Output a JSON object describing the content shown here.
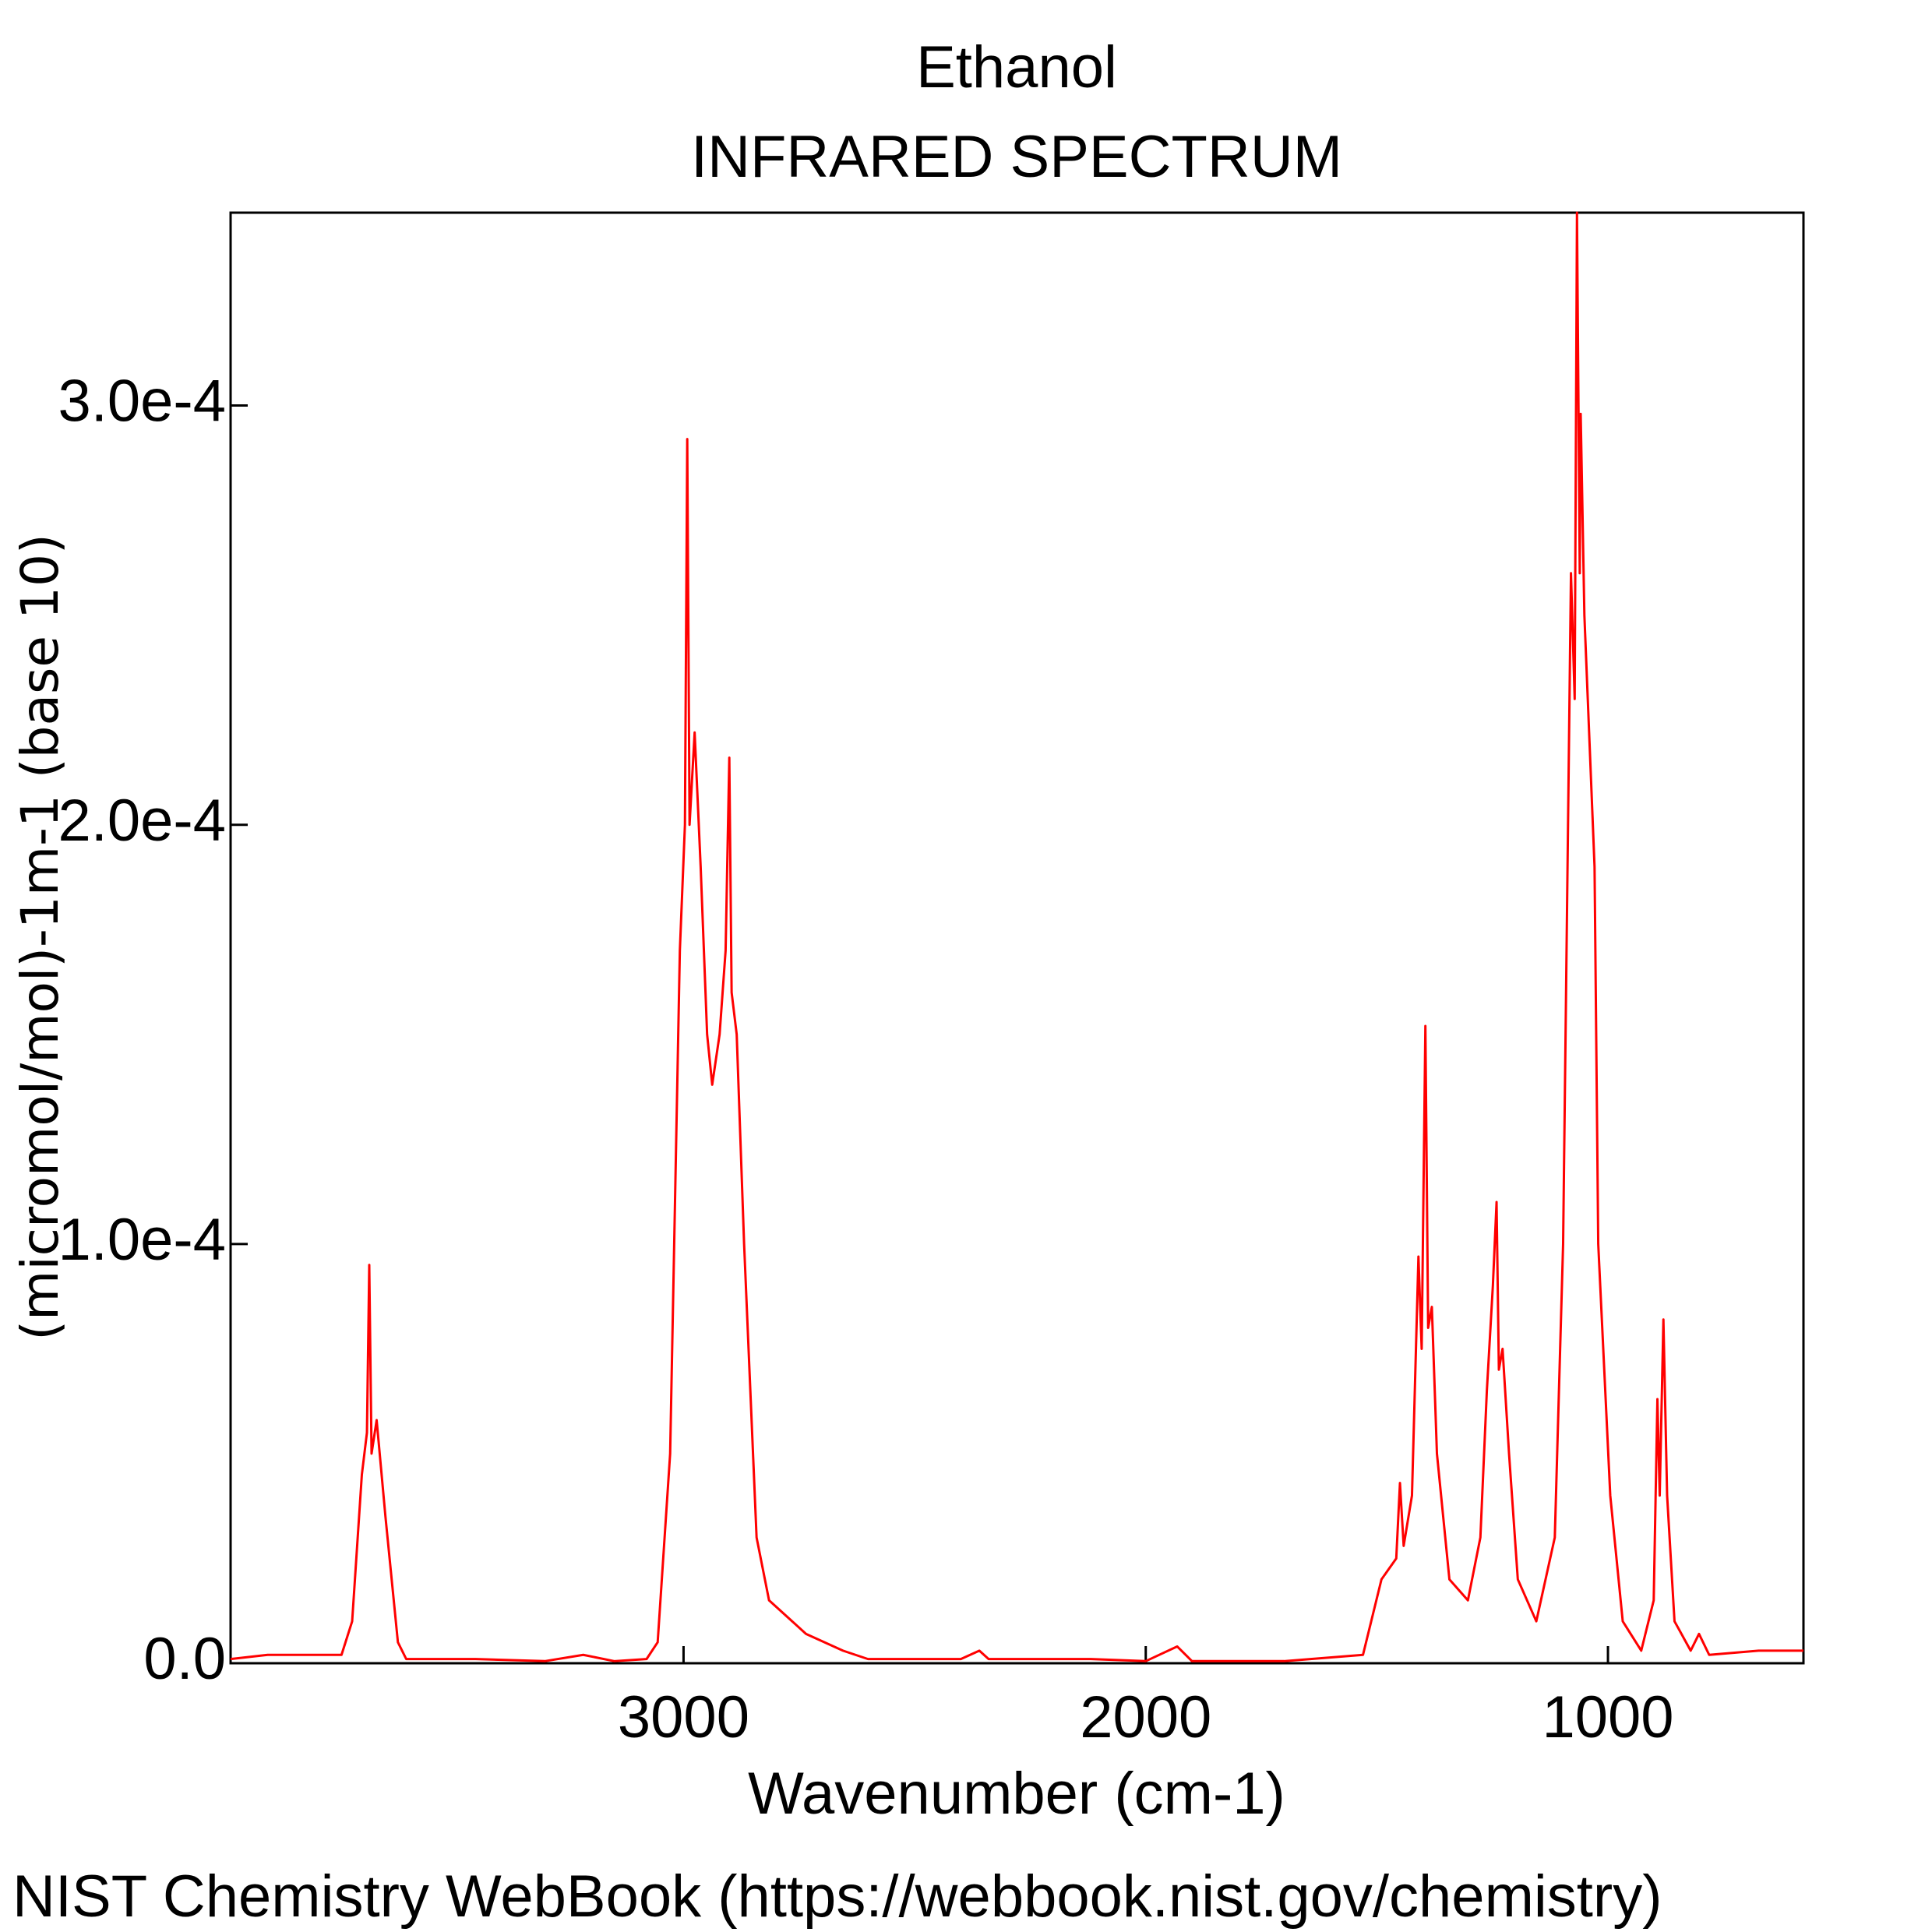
{
  "chart_data": {
    "type": "line",
    "title": "Ethanol",
    "subtitle": "INFRARED SPECTRUM",
    "x_label": "Wavenumber (cm-1)",
    "y_label": "(micromol/mol)-1m-1 (base 10)",
    "source": "NIST Chemistry WebBook (https://webbook.nist.gov/chemistry)",
    "color": "#ff0000",
    "x": [
      3980,
      3900,
      3800,
      3740,
      3717,
      3696,
      3685,
      3680,
      3675,
      3664,
      3645,
      3618,
      3600,
      3450,
      3300,
      3217,
      3150,
      3080,
      3056,
      3029,
      3008,
      2997,
      2992,
      2987,
      2976,
      2963,
      2949,
      2938,
      2922,
      2909,
      2901,
      2896,
      2885,
      2869,
      2842,
      2815,
      2735,
      2655,
      2601,
      2400,
      2360,
      2340,
      2119,
      2000,
      1932,
      1900,
      1700,
      1530,
      1490,
      1458,
      1450,
      1442,
      1424,
      1410,
      1403,
      1395,
      1389,
      1381,
      1370,
      1343,
      1303,
      1276,
      1262,
      1249,
      1241,
      1236,
      1228,
      1214,
      1195,
      1155,
      1115,
      1097,
      1080,
      1072,
      1067,
      1061,
      1059,
      1051,
      1040,
      1029,
      1021,
      995,
      968,
      928,
      901,
      893,
      888,
      880,
      872,
      856,
      821,
      803,
      781,
      674,
      577
    ],
    "values": [
      1e-06,
      2e-06,
      2e-06,
      2e-06,
      1e-05,
      4.5e-05,
      5.5e-05,
      9.5e-05,
      5e-05,
      5.8e-05,
      3.5e-05,
      5e-06,
      1e-06,
      1e-06,
      5e-07,
      2e-06,
      5e-07,
      1e-06,
      5e-06,
      5e-05,
      0.00017,
      0.0002,
      0.000292,
      0.0002,
      0.000222,
      0.00019,
      0.00015,
      0.000138,
      0.00015,
      0.00017,
      0.000216,
      0.00016,
      0.00015,
      0.0001,
      3e-05,
      1.5e-05,
      7e-06,
      3e-06,
      1e-06,
      1e-06,
      3e-06,
      1e-06,
      1e-06,
      5e-07,
      4e-06,
      5e-07,
      5e-07,
      2e-06,
      2e-05,
      2.5e-05,
      4.3e-05,
      2.8e-05,
      4e-05,
      9.7e-05,
      7.5e-05,
      0.000152,
      8e-05,
      8.5e-05,
      5e-05,
      2e-05,
      1.5e-05,
      3e-05,
      6.5e-05,
      9e-05,
      0.00011,
      7e-05,
      7.5e-05,
      5e-05,
      2e-05,
      1e-05,
      3e-05,
      0.0001,
      0.00026,
      0.00023,
      0.000346,
      0.00026,
      0.000298,
      0.00025,
      0.00022,
      0.00019,
      0.0001,
      4e-05,
      1e-05,
      3e-06,
      1.5e-05,
      6.3e-05,
      4e-05,
      8.2e-05,
      4e-05,
      1e-05,
      3e-06,
      7e-06,
      2e-06,
      3e-06,
      3e-06
    ],
    "xlim": [
      3980,
      577
    ],
    "xticks": [
      3000,
      2000,
      1000
    ],
    "ylim": [
      0,
      0.000346
    ],
    "yticks": [
      {
        "value": 0,
        "label": "0.0"
      },
      {
        "value": 0.0001,
        "label": "1.0e-4"
      },
      {
        "value": 0.0002,
        "label": "2.0e-4"
      },
      {
        "value": 0.0003,
        "label": "3.0e-4"
      }
    ]
  }
}
